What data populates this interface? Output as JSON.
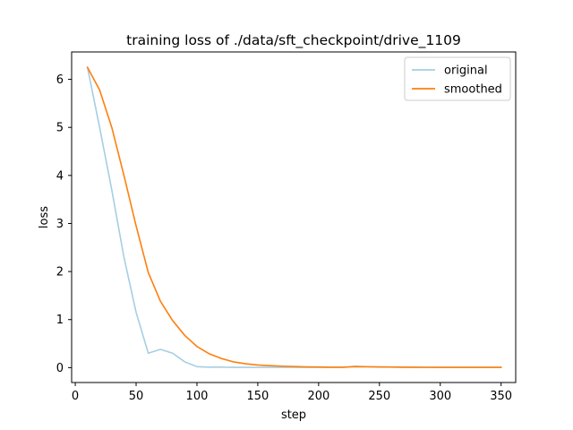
{
  "chart_data": {
    "type": "line",
    "title": "training loss of ./data/sft_checkpoint/drive_1109",
    "xlabel": "step",
    "ylabel": "loss",
    "xlim": [
      -3,
      362
    ],
    "ylim": [
      -0.31,
      6.57
    ],
    "xticks": [
      0,
      50,
      100,
      150,
      200,
      250,
      300,
      350
    ],
    "yticks": [
      0,
      1,
      2,
      3,
      4,
      5,
      6
    ],
    "grid": false,
    "legend": "upper-right",
    "x": [
      10,
      20,
      30,
      40,
      50,
      60,
      70,
      80,
      90,
      100,
      110,
      120,
      130,
      140,
      150,
      160,
      170,
      180,
      190,
      200,
      210,
      220,
      230,
      240,
      250,
      260,
      270,
      280,
      290,
      300,
      310,
      320,
      330,
      340,
      350
    ],
    "series": [
      {
        "name": "original",
        "color": "#a6cee3",
        "values": [
          6.25,
          5.0,
          3.7,
          2.3,
          1.15,
          0.3,
          0.38,
          0.3,
          0.12,
          0.02,
          0.01,
          0.01,
          0.005,
          0.005,
          0.005,
          0.005,
          0.005,
          0.005,
          0.005,
          0.005,
          0.005,
          0.005,
          0.03,
          0.02,
          0.01,
          0.01,
          0.005,
          0.005,
          0.005,
          0.005,
          0.005,
          0.005,
          0.005,
          0.005,
          0.005
        ]
      },
      {
        "name": "smoothed",
        "color": "#ff7f0e",
        "values": [
          6.25,
          5.78,
          5.0,
          4.0,
          2.95,
          1.98,
          1.38,
          0.98,
          0.67,
          0.44,
          0.29,
          0.19,
          0.12,
          0.08,
          0.055,
          0.04,
          0.03,
          0.022,
          0.016,
          0.012,
          0.009,
          0.008,
          0.02,
          0.018,
          0.015,
          0.012,
          0.01,
          0.008,
          0.007,
          0.006,
          0.006,
          0.005,
          0.005,
          0.005,
          0.005
        ]
      }
    ]
  }
}
